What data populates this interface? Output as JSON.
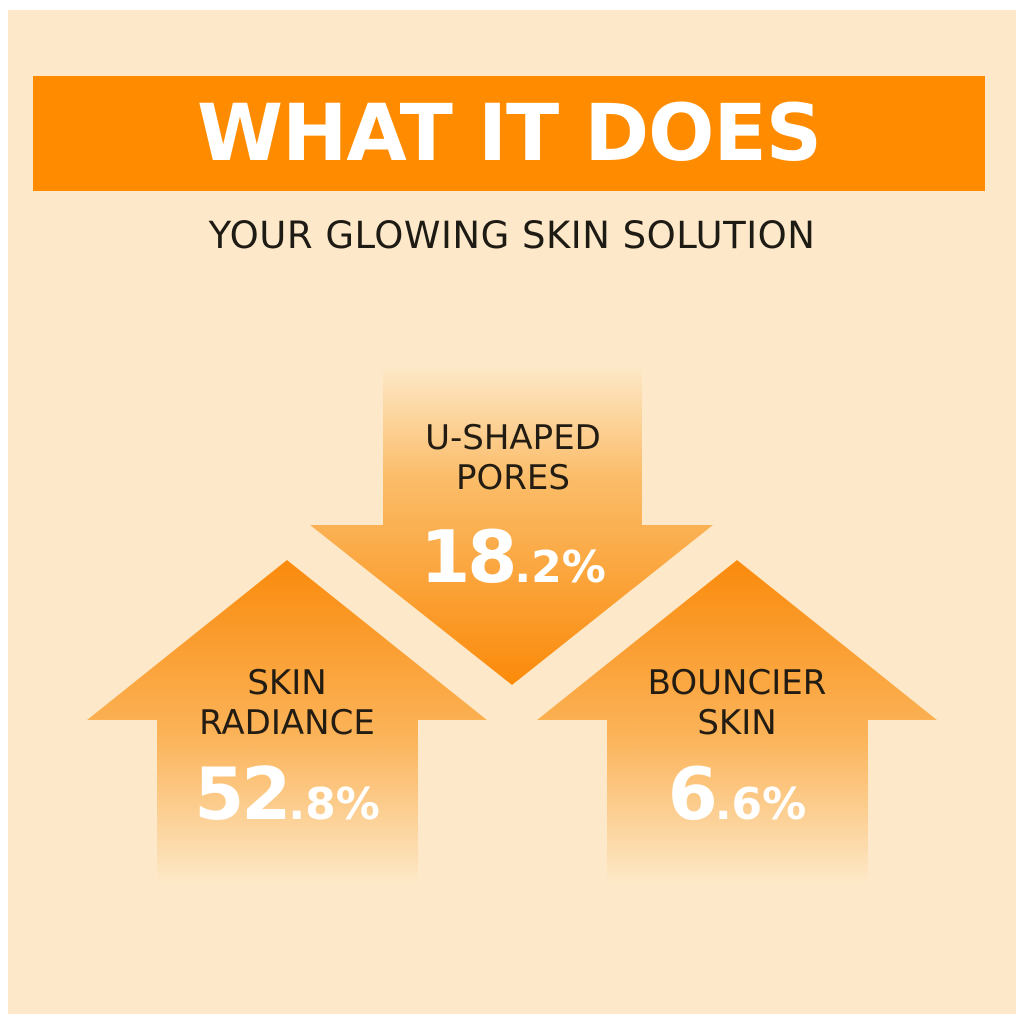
{
  "header": {
    "title": "WHAT IT DOES",
    "subtitle": "YOUR GLOWING SKIN SOLUTION"
  },
  "colors": {
    "accent": "#ff8c00",
    "background": "#fde9c9",
    "text": "#231c12"
  },
  "stats": [
    {
      "label_line1": "U-SHAPED",
      "label_line2": "PORES",
      "value_int": "18",
      "value_dec": ".2%",
      "direction": "down",
      "icon": "arrow-down-icon"
    },
    {
      "label_line1": "SKIN",
      "label_line2": "RADIANCE",
      "value_int": "52",
      "value_dec": ".8%",
      "direction": "up",
      "icon": "arrow-up-icon"
    },
    {
      "label_line1": "BOUNCIER",
      "label_line2": "SKIN",
      "value_int": "6",
      "value_dec": ".6%",
      "direction": "up",
      "icon": "arrow-up-icon"
    }
  ]
}
